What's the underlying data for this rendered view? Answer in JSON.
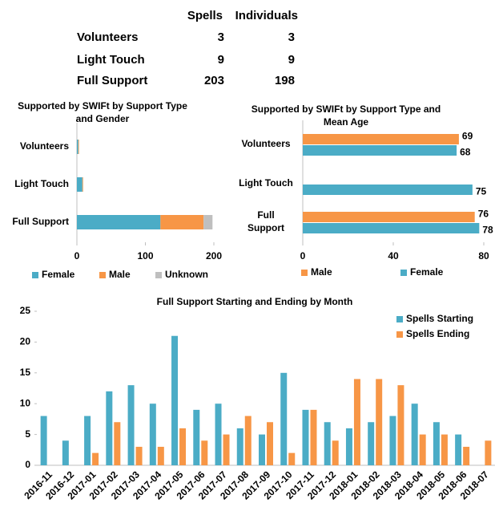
{
  "table": {
    "header": [
      "Spells",
      "Individuals"
    ],
    "rows": [
      [
        "Volunteers",
        3,
        3
      ],
      [
        "Light Touch",
        9,
        9
      ],
      [
        "Full Support",
        203,
        198
      ]
    ]
  },
  "chart_data": [
    {
      "type": "hbar-stacked",
      "title": "Supported by SWIFt by Support Type and Gender",
      "categories": [
        "Volunteers",
        "Light Touch",
        "Full Support"
      ],
      "series": [
        {
          "name": "Female",
          "color": "#4bacc6",
          "values": [
            2,
            8,
            122
          ]
        },
        {
          "name": "Male",
          "color": "#f79646",
          "values": [
            1,
            1,
            63
          ]
        },
        {
          "name": "Unknown",
          "color": "#bfbfbf",
          "values": [
            0,
            0,
            13
          ]
        }
      ],
      "xlim": [
        0,
        200
      ],
      "xticks": [
        0,
        100,
        200
      ],
      "legend": "bottom"
    },
    {
      "type": "hbar-grouped",
      "title": "Supported by SWIFt by Support Type and Mean Age",
      "categories": [
        "Volunteers",
        "Light Touch",
        "Full Support"
      ],
      "series": [
        {
          "name": "Male",
          "color": "#f79646",
          "values": [
            69,
            null,
            76
          ]
        },
        {
          "name": "Female",
          "color": "#4bacc6",
          "values": [
            68,
            75,
            78
          ]
        }
      ],
      "xlim": [
        0,
        80
      ],
      "xticks": [
        0,
        40,
        80
      ],
      "legend": "bottom",
      "data_labels": true
    },
    {
      "type": "vbar-grouped",
      "title": "Full Support Starting and Ending by Month",
      "categories": [
        "2016-11",
        "2016-12",
        "2017-01",
        "2017-02",
        "2017-03",
        "2017-04",
        "2017-05",
        "2017-06",
        "2017-07",
        "2017-08",
        "2017-09",
        "2017-10",
        "2017-11",
        "2017-12",
        "2018-01",
        "2018-02",
        "2018-03",
        "2018-04",
        "2018-05",
        "2018-06",
        "2018-07"
      ],
      "series": [
        {
          "name": "Spells Starting",
          "color": "#4bacc6",
          "values": [
            8,
            4,
            8,
            12,
            13,
            10,
            21,
            9,
            10,
            6,
            5,
            15,
            9,
            7,
            6,
            7,
            8,
            10,
            7,
            5,
            0
          ]
        },
        {
          "name": "Spells Ending",
          "color": "#f79646",
          "values": [
            0,
            0,
            2,
            7,
            3,
            3,
            6,
            4,
            5,
            8,
            7,
            2,
            9,
            4,
            14,
            14,
            13,
            5,
            5,
            3,
            4
          ]
        }
      ],
      "ylim": [
        0,
        25
      ],
      "yticks": [
        0,
        5,
        10,
        15,
        20,
        25
      ],
      "legend": "top-right"
    }
  ]
}
